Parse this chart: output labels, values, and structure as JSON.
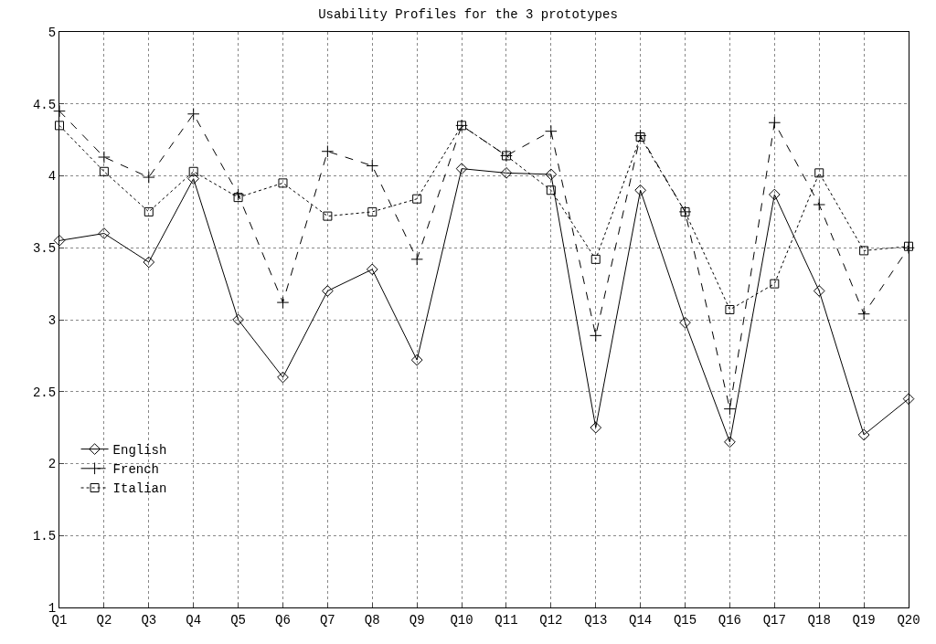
{
  "chart_data": {
    "type": "line",
    "title": "Usability Profiles for the 3 prototypes",
    "categories": [
      "Q1",
      "Q2",
      "Q3",
      "Q4",
      "Q5",
      "Q6",
      "Q7",
      "Q8",
      "Q9",
      "Q10",
      "Q11",
      "Q12",
      "Q13",
      "Q14",
      "Q15",
      "Q16",
      "Q17",
      "Q18",
      "Q19",
      "Q20"
    ],
    "series": [
      {
        "name": "English",
        "color": "#000000",
        "marker": "diamond",
        "line_style": "solid",
        "values": [
          3.55,
          3.6,
          3.4,
          3.98,
          3.0,
          2.6,
          3.2,
          3.35,
          2.72,
          4.05,
          4.02,
          4.01,
          2.25,
          3.9,
          2.98,
          2.15,
          3.87,
          3.2,
          2.2,
          2.45
        ]
      },
      {
        "name": "French",
        "color": "#000000",
        "marker": "cross",
        "line_style": "dashed",
        "values": [
          4.45,
          4.13,
          3.99,
          4.43,
          3.87,
          3.12,
          4.17,
          4.07,
          3.42,
          4.35,
          4.14,
          4.31,
          2.89,
          4.28,
          3.75,
          2.38,
          4.37,
          3.8,
          3.04,
          3.5
        ]
      },
      {
        "name": "Italian",
        "color": "#000000",
        "marker": "square",
        "line_style": "dotted",
        "values": [
          4.35,
          4.03,
          3.75,
          4.03,
          3.85,
          3.95,
          3.72,
          3.75,
          3.84,
          4.35,
          4.14,
          3.9,
          3.42,
          4.27,
          3.75,
          3.07,
          3.25,
          4.02,
          3.48,
          3.51
        ]
      }
    ],
    "ylim": [
      1,
      5
    ],
    "yticks": [
      1,
      1.5,
      2,
      2.5,
      3,
      3.5,
      4,
      4.5,
      5
    ],
    "grid": true,
    "legend": "bottom left"
  }
}
